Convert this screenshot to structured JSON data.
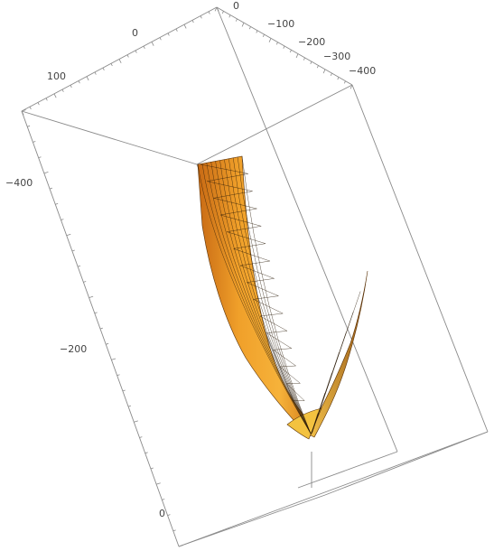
{
  "chart_data": {
    "type": "surface3d",
    "title": "",
    "axes": {
      "top_left": {
        "tick_labels": [
          "100",
          "0"
        ],
        "range": [
          100,
          0
        ]
      },
      "top_right": {
        "tick_labels": [
          "0",
          "−100",
          "−200",
          "−300",
          "−400"
        ],
        "range": [
          0,
          -400
        ]
      },
      "vertical": {
        "tick_labels": [
          "−400",
          "−200",
          "0"
        ],
        "range": [
          -400,
          0
        ]
      }
    },
    "surface": {
      "description_values": {
        "min_vertical": 0,
        "max_vertical": -400
      },
      "colors": {
        "light": "#f6c64a",
        "mid": "#f0a02a",
        "dark": "#c86a14",
        "mesh": "#2a1a08"
      }
    },
    "box": true,
    "grid": false
  }
}
